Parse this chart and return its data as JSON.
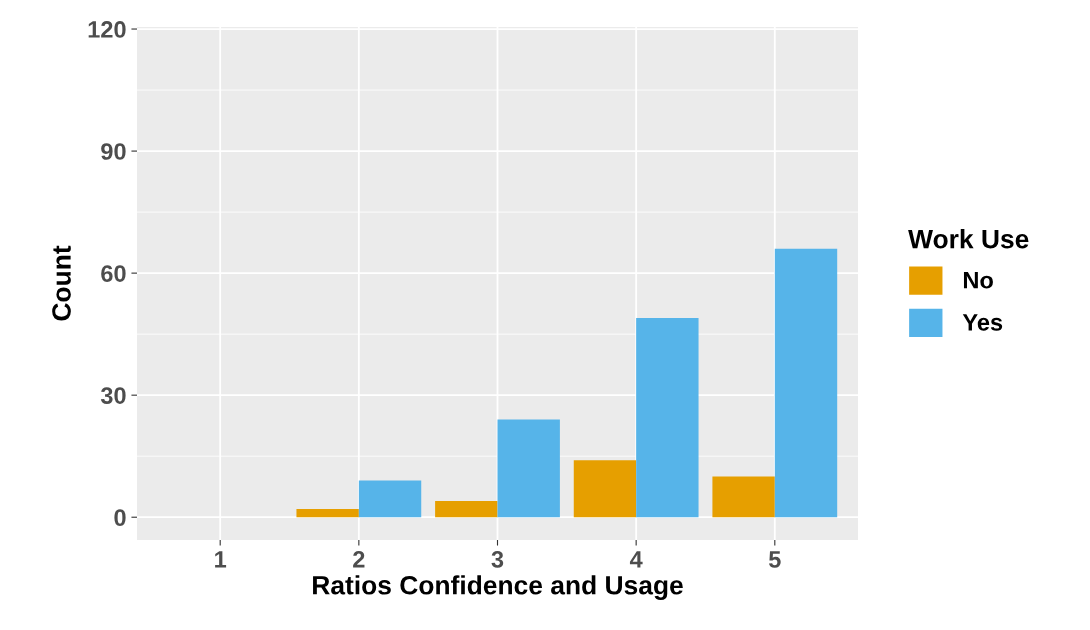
{
  "chart_data": {
    "type": "bar",
    "xlabel": "Ratios Confidence and Usage",
    "ylabel": "Count",
    "legend_title": "Work Use",
    "categories": [
      "1",
      "2",
      "3",
      "4",
      "5"
    ],
    "series": [
      {
        "name": "No",
        "color": "#e69f00",
        "values": [
          null,
          2,
          4,
          14,
          10
        ]
      },
      {
        "name": "Yes",
        "color": "#56b4e9",
        "values": [
          null,
          9,
          24,
          49,
          66
        ]
      }
    ],
    "ylim": [
      -5.6,
      120.5
    ],
    "yticks": [
      0,
      30,
      60,
      90,
      120
    ],
    "grid": true,
    "legend": "right"
  }
}
